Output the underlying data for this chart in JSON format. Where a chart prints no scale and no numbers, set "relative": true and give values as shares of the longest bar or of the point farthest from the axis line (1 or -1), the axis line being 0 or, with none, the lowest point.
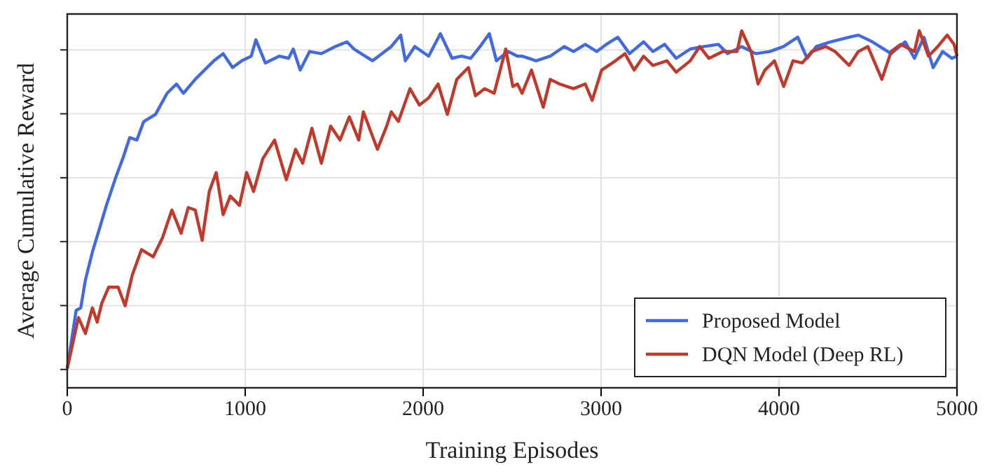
{
  "chart_data": {
    "type": "line",
    "xlabel": "Training Episodes",
    "ylabel": "Average Cumulative Reward",
    "relative": true,
    "xlim": [
      0,
      5000
    ],
    "xticks": [
      0,
      1000,
      2000,
      3000,
      4000,
      5000
    ],
    "grid": true,
    "legend": "bottom right",
    "line_style": "solid",
    "series": [
      {
        "name": "Proposed Model",
        "color": "#4169e1",
        "x": [
          0,
          50,
          76,
          102,
          141,
          181,
          220,
          273,
          312,
          351,
          391,
          430,
          496,
          561,
          614,
          653,
          719,
          771,
          824,
          876,
          929,
          981,
          1034,
          1060,
          1113,
          1191,
          1244,
          1270,
          1309,
          1362,
          1428,
          1506,
          1572,
          1611,
          1716,
          1821,
          1874,
          1900,
          1953,
          2031,
          2097,
          2162,
          2215,
          2267,
          2320,
          2372,
          2412,
          2477,
          2530,
          2556,
          2635,
          2714,
          2793,
          2845,
          2911,
          2976,
          3029,
          3094,
          3160,
          3239,
          3291,
          3357,
          3422,
          3501,
          3580,
          3659,
          3711,
          3790,
          3869,
          3948,
          4026,
          4105,
          4158,
          4210,
          4289,
          4394,
          4446,
          4525,
          4630,
          4709,
          4761,
          4814,
          4866,
          4919,
          4971,
          5000
        ],
        "values": [
          0.054,
          0.217,
          0.224,
          0.302,
          0.38,
          0.446,
          0.511,
          0.59,
          0.642,
          0.701,
          0.694,
          0.746,
          0.766,
          0.825,
          0.851,
          0.825,
          0.864,
          0.89,
          0.916,
          0.936,
          0.897,
          0.916,
          0.929,
          0.975,
          0.91,
          0.929,
          0.923,
          0.949,
          0.89,
          0.942,
          0.936,
          0.956,
          0.969,
          0.949,
          0.916,
          0.956,
          0.988,
          0.916,
          0.956,
          0.929,
          0.992,
          0.923,
          0.929,
          0.923,
          0.956,
          0.992,
          0.916,
          0.942,
          0.929,
          0.929,
          0.916,
          0.929,
          0.956,
          0.942,
          0.962,
          0.942,
          0.962,
          0.982,
          0.936,
          0.969,
          0.942,
          0.962,
          0.923,
          0.949,
          0.956,
          0.962,
          0.936,
          0.956,
          0.936,
          0.942,
          0.956,
          0.982,
          0.923,
          0.956,
          0.969,
          0.982,
          0.988,
          0.969,
          0.936,
          0.969,
          0.923,
          0.982,
          0.897,
          0.942,
          0.923,
          0.929
        ]
      },
      {
        "name": "DQN Model (Deep RL)",
        "color": "#c0392b",
        "x": [
          0,
          63,
          102,
          141,
          168,
          194,
          233,
          286,
          325,
          365,
          417,
          483,
          535,
          588,
          640,
          680,
          719,
          758,
          798,
          837,
          876,
          916,
          968,
          1008,
          1047,
          1099,
          1165,
          1231,
          1283,
          1323,
          1375,
          1428,
          1480,
          1533,
          1585,
          1638,
          1664,
          1743,
          1795,
          1821,
          1861,
          1926,
          1979,
          2031,
          2084,
          2136,
          2189,
          2254,
          2294,
          2346,
          2399,
          2464,
          2504,
          2530,
          2556,
          2609,
          2675,
          2714,
          2767,
          2845,
          2911,
          2950,
          3003,
          3081,
          3134,
          3186,
          3239,
          3291,
          3370,
          3422,
          3501,
          3554,
          3606,
          3685,
          3764,
          3790,
          3843,
          3882,
          3921,
          3974,
          4026,
          4079,
          4131,
          4184,
          4263,
          4315,
          4394,
          4446,
          4499,
          4578,
          4630,
          4683,
          4761,
          4788,
          4840,
          4892,
          4945,
          4984,
          5000
        ],
        "values": [
          0.054,
          0.197,
          0.152,
          0.224,
          0.184,
          0.237,
          0.282,
          0.282,
          0.23,
          0.315,
          0.387,
          0.367,
          0.42,
          0.498,
          0.433,
          0.505,
          0.498,
          0.413,
          0.55,
          0.603,
          0.485,
          0.537,
          0.511,
          0.603,
          0.55,
          0.642,
          0.694,
          0.583,
          0.668,
          0.629,
          0.727,
          0.629,
          0.733,
          0.694,
          0.759,
          0.694,
          0.773,
          0.668,
          0.733,
          0.773,
          0.746,
          0.838,
          0.792,
          0.812,
          0.851,
          0.766,
          0.864,
          0.897,
          0.818,
          0.838,
          0.825,
          0.949,
          0.844,
          0.851,
          0.825,
          0.89,
          0.786,
          0.864,
          0.851,
          0.838,
          0.851,
          0.805,
          0.89,
          0.916,
          0.936,
          0.89,
          0.929,
          0.903,
          0.916,
          0.884,
          0.916,
          0.956,
          0.923,
          0.942,
          0.942,
          1,
          0.942,
          0.851,
          0.89,
          0.916,
          0.844,
          0.916,
          0.91,
          0.942,
          0.956,
          0.942,
          0.903,
          0.942,
          0.956,
          0.864,
          0.942,
          0.962,
          0.942,
          1,
          0.929,
          0.956,
          0.988,
          0.962,
          0.929
        ]
      }
    ]
  }
}
